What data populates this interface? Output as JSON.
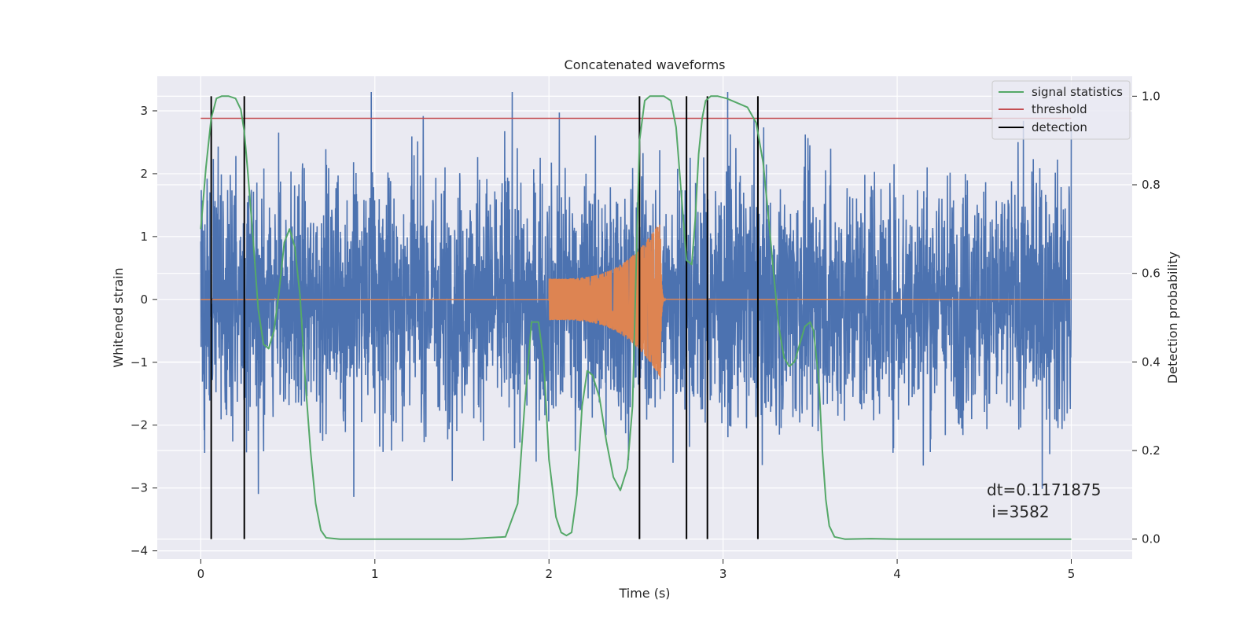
{
  "chart_data": {
    "type": "line",
    "title": "Concatenated waveforms",
    "xlabel": "Time (s)",
    "ylabel": "Whitened strain",
    "y2label": "Detection probability",
    "xlim": [
      -0.25,
      5.35
    ],
    "ylim": [
      -4.13,
      3.55
    ],
    "y2lim": [
      -0.045,
      1.045
    ],
    "x_ticks": [
      0,
      1,
      2,
      3,
      4,
      5
    ],
    "y_ticks": [
      -4,
      -3,
      -2,
      -1,
      0,
      1,
      2,
      3
    ],
    "y2_ticks": [
      0.0,
      0.2,
      0.4,
      0.6,
      0.8,
      1.0
    ],
    "grid": true,
    "legend_position": "top-right",
    "colors": {
      "background": "#eaeaf2",
      "grid": "#ffffff",
      "strain": "#4c72b0",
      "waveform": "#dd8452",
      "statistic": "#55a868",
      "threshold": "#c44e52",
      "detection": "#000000"
    },
    "strain": {
      "name": "whitened strain",
      "t_range": [
        0,
        5
      ],
      "typical_peak": 1.9,
      "min_value": -3.83,
      "max_value": 3.3
    },
    "waveform": {
      "name": "injected waveform",
      "t_start": 2.0,
      "t_merger": 2.64,
      "amplitude_start": 0.33,
      "amplitude_peak": 1.25
    },
    "series": [
      {
        "name": "signal statistics",
        "axis": "right",
        "x": [
          0,
          0.03,
          0.06,
          0.09,
          0.12,
          0.16,
          0.2,
          0.23,
          0.25,
          0.27,
          0.3,
          0.33,
          0.36,
          0.39,
          0.42,
          0.45,
          0.48,
          0.51,
          0.54,
          0.57,
          0.6,
          0.63,
          0.66,
          0.69,
          0.72,
          0.8,
          1.0,
          1.5,
          1.75,
          1.82,
          1.86,
          1.9,
          1.94,
          1.97,
          2.0,
          2.04,
          2.07,
          2.1,
          2.13,
          2.16,
          2.19,
          2.22,
          2.25,
          2.29,
          2.33,
          2.37,
          2.41,
          2.45,
          2.48,
          2.5,
          2.52,
          2.55,
          2.58,
          2.62,
          2.66,
          2.7,
          2.73,
          2.76,
          2.79,
          2.82,
          2.84,
          2.86,
          2.88,
          2.9,
          2.93,
          2.97,
          3.02,
          3.08,
          3.14,
          3.19,
          3.23,
          3.26,
          3.29,
          3.32,
          3.35,
          3.38,
          3.41,
          3.44,
          3.47,
          3.5,
          3.52,
          3.55,
          3.57,
          3.59,
          3.61,
          3.64,
          3.7,
          3.85,
          4.0,
          4.5,
          5.0
        ],
        "y": [
          0.7,
          0.84,
          0.95,
          0.995,
          1.0,
          1.0,
          0.995,
          0.97,
          0.92,
          0.83,
          0.68,
          0.52,
          0.44,
          0.43,
          0.47,
          0.56,
          0.67,
          0.7,
          0.66,
          0.55,
          0.36,
          0.2,
          0.08,
          0.02,
          0.003,
          0.0,
          0.0,
          0.0,
          0.005,
          0.08,
          0.3,
          0.49,
          0.49,
          0.4,
          0.18,
          0.05,
          0.015,
          0.008,
          0.015,
          0.1,
          0.3,
          0.38,
          0.37,
          0.32,
          0.22,
          0.14,
          0.11,
          0.16,
          0.3,
          0.6,
          0.9,
          0.99,
          1.0,
          1.0,
          1.0,
          0.99,
          0.93,
          0.78,
          0.63,
          0.62,
          0.72,
          0.87,
          0.95,
          0.99,
          1.0,
          1.0,
          0.995,
          0.985,
          0.975,
          0.94,
          0.85,
          0.73,
          0.6,
          0.48,
          0.41,
          0.39,
          0.4,
          0.44,
          0.48,
          0.49,
          0.47,
          0.36,
          0.2,
          0.09,
          0.03,
          0.005,
          0.0,
          0.001,
          0.0,
          0.0,
          0.0
        ]
      },
      {
        "name": "threshold",
        "axis": "right",
        "x": [
          0,
          5
        ],
        "y": [
          0.95,
          0.95
        ]
      },
      {
        "name": "detection",
        "axis": "right",
        "times": [
          0.06,
          0.25,
          2.52,
          2.79,
          2.91,
          3.2
        ],
        "y_range": [
          0,
          1
        ]
      }
    ],
    "annotation": {
      "line1": "dt=0.1171875",
      "line2": " i=3582"
    },
    "legend": [
      "signal statistics",
      "threshold",
      "detection"
    ]
  }
}
